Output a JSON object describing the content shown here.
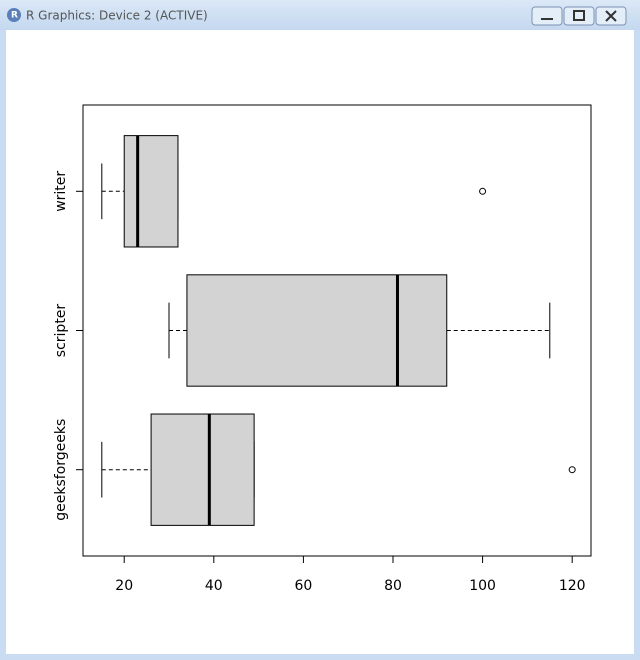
{
  "window": {
    "title": "R Graphics: Device 2 (ACTIVE)"
  },
  "chart_data": {
    "type": "boxplot",
    "horizontal": true,
    "color": "#d3d3d3",
    "categories": [
      "geeksforgeeks",
      "scripter",
      "writer"
    ],
    "min": [
      15,
      30,
      15
    ],
    "q1": [
      26,
      34,
      20
    ],
    "median": [
      39,
      81,
      23
    ],
    "q3": [
      49,
      92,
      32
    ],
    "max": [
      49,
      115,
      32
    ],
    "outliers": [
      [
        120
      ],
      [],
      [
        100
      ]
    ],
    "xlim": [
      10.8,
      124.2
    ],
    "xticks": [
      20,
      40,
      60,
      80,
      100,
      120
    ]
  }
}
